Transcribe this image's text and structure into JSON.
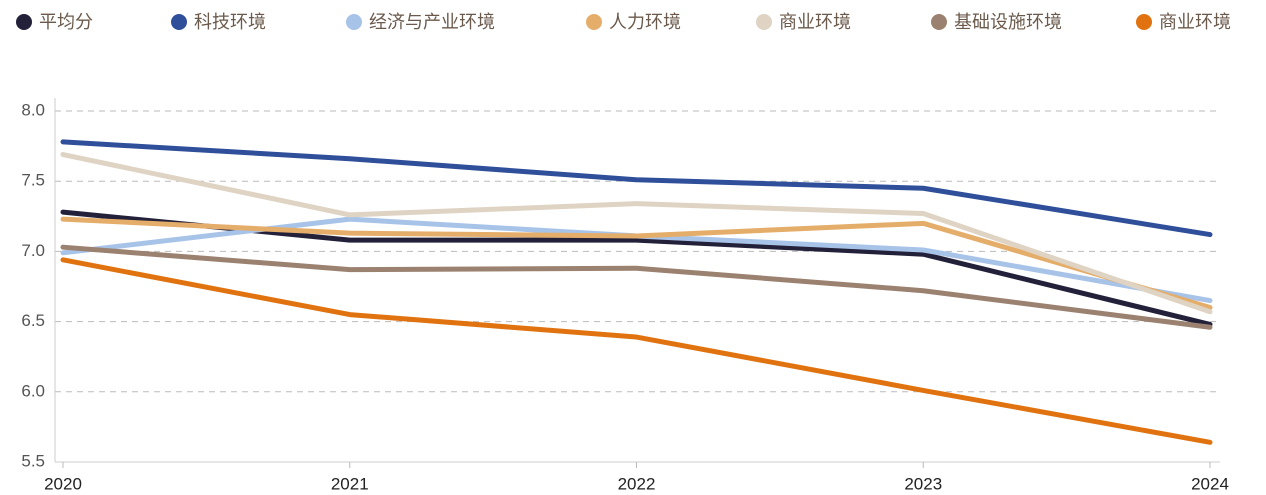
{
  "chart_data": {
    "type": "line",
    "categories": [
      "2020",
      "2021",
      "2022",
      "2023",
      "2024"
    ],
    "series": [
      {
        "name": "平均分",
        "color": "#23203a",
        "values": [
          7.28,
          7.08,
          7.08,
          6.98,
          6.48
        ]
      },
      {
        "name": "科技环境",
        "color": "#2f4f9a",
        "values": [
          7.78,
          7.66,
          7.51,
          7.45,
          7.12
        ]
      },
      {
        "name": "经济与产业环境",
        "color": "#a7c3e8",
        "values": [
          6.99,
          7.23,
          7.11,
          7.01,
          6.65
        ]
      },
      {
        "name": "人力环境",
        "color": "#e5ad6a",
        "values": [
          7.23,
          7.13,
          7.11,
          7.2,
          6.6
        ]
      },
      {
        "name": "商业环境",
        "color": "#dfd3c3",
        "values": [
          7.69,
          7.26,
          7.34,
          7.27,
          6.57
        ]
      },
      {
        "name": "基础设施环境",
        "color": "#9b8170",
        "values": [
          7.03,
          6.87,
          6.88,
          6.72,
          6.46
        ]
      },
      {
        "name": "商业环境",
        "color": "#e0730f",
        "values": [
          6.94,
          6.55,
          6.39,
          6.01,
          5.64
        ]
      }
    ],
    "ylim": [
      5.5,
      8.0
    ],
    "yticks": [
      5.5,
      {
        "value": 6,
        "label": "6.0"
      },
      6.5,
      {
        "value": 7,
        "label": "7.0"
      },
      7.5,
      {
        "value": 8,
        "label": "8.0"
      }
    ],
    "grid": true
  }
}
